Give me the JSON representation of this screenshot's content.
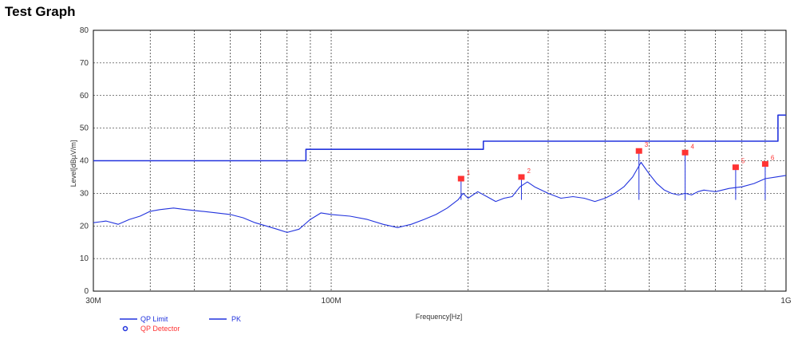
{
  "title": "Test Graph",
  "chart_data": {
    "type": "line",
    "title": "Test Graph",
    "xlabel": "Frequency[Hz]",
    "ylabel": "Level[dBµV/m]",
    "x_scale": "log",
    "xlim": [
      30000000,
      1000000000
    ],
    "ylim": [
      0,
      80
    ],
    "grid": true,
    "legend_position": "bottom-left",
    "y_ticks": [
      "0",
      "10",
      "20",
      "30",
      "40",
      "50",
      "60",
      "70",
      "80"
    ],
    "x_tick_labels": [
      {
        "value": 30000000,
        "label": "30M"
      },
      {
        "value": 100000000,
        "label": "100M"
      },
      {
        "value": 1000000000,
        "label": "1G"
      }
    ],
    "series": [
      {
        "name": "QP Limit",
        "color": "#2233dd",
        "style": "step",
        "x": [
          30000000,
          88000000,
          88000000,
          216000000,
          216000000,
          960000000,
          960000000,
          1000000000
        ],
        "y": [
          40,
          40,
          43.5,
          43.5,
          46,
          46,
          54,
          54
        ]
      },
      {
        "name": "PK",
        "color": "#2233dd",
        "x": [
          30000000,
          32000000,
          34000000,
          36000000,
          38000000,
          40000000,
          42000000,
          45000000,
          48000000,
          52000000,
          56000000,
          60000000,
          64000000,
          68000000,
          72000000,
          76000000,
          80000000,
          85000000,
          90000000,
          95000000,
          100000000,
          110000000,
          120000000,
          130000000,
          140000000,
          150000000,
          160000000,
          170000000,
          180000000,
          190000000,
          195000000,
          200000000,
          210000000,
          220000000,
          230000000,
          240000000,
          250000000,
          260000000,
          270000000,
          280000000,
          300000000,
          320000000,
          340000000,
          360000000,
          380000000,
          400000000,
          420000000,
          440000000,
          460000000,
          480000000,
          500000000,
          520000000,
          540000000,
          560000000,
          580000000,
          600000000,
          620000000,
          640000000,
          660000000,
          700000000,
          750000000,
          800000000,
          850000000,
          900000000,
          950000000,
          1000000000
        ],
        "y": [
          21,
          21.5,
          20.5,
          22,
          23,
          24.5,
          25,
          25.5,
          25,
          24.5,
          24,
          23.5,
          22.5,
          21,
          20,
          19,
          18,
          19,
          22,
          24,
          23.5,
          23,
          22,
          20.5,
          19.5,
          20.5,
          22,
          23.5,
          25.5,
          28,
          30,
          28.5,
          30.5,
          29,
          27.5,
          28.5,
          29,
          32,
          33.5,
          32,
          30,
          28.5,
          29,
          28.5,
          27.5,
          28.5,
          30,
          32,
          35,
          39.5,
          36,
          33,
          31,
          30,
          29.5,
          30,
          29.5,
          30.5,
          31,
          30.5,
          31.5,
          32,
          33,
          34.5,
          35,
          35.5
        ]
      }
    ],
    "qp_detector": {
      "name": "QP Detector",
      "color": "#ff3333",
      "points": [
        {
          "label": "1",
          "x": 193000000,
          "y": 34.5
        },
        {
          "label": "2",
          "x": 262000000,
          "y": 35
        },
        {
          "label": "3",
          "x": 475000000,
          "y": 43
        },
        {
          "label": "4",
          "x": 600000000,
          "y": 42.5
        },
        {
          "label": "5",
          "x": 775000000,
          "y": 38
        },
        {
          "label": "6",
          "x": 900000000,
          "y": 39
        }
      ]
    },
    "spikes": [
      {
        "x": 193000000,
        "y": 34.5
      },
      {
        "x": 262000000,
        "y": 35
      },
      {
        "x": 475000000,
        "y": 43
      },
      {
        "x": 600000000,
        "y": 42.5
      },
      {
        "x": 775000000,
        "y": 38
      },
      {
        "x": 900000000,
        "y": 39
      }
    ]
  }
}
